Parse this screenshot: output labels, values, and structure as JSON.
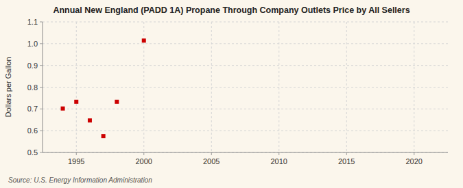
{
  "chart_data": {
    "type": "scatter",
    "title": "Annual New England (PADD 1A) Propane Through Company Outlets Price by All Sellers",
    "ylabel": "Dollars per Gallon",
    "annotations": [
      "Source: U.S. Energy Information Administration"
    ],
    "x": [
      1994,
      1995,
      1996,
      1997,
      1998,
      2000
    ],
    "values": [
      0.702,
      0.733,
      0.647,
      0.575,
      0.733,
      1.014
    ],
    "color": "#cc0000",
    "marker": "square",
    "xlim": [
      1992.5,
      2022.5
    ],
    "ylim": [
      0.5,
      1.1
    ],
    "xticks": [
      1995,
      2000,
      2005,
      2010,
      2015,
      2020
    ],
    "yticks": [
      0.5,
      0.6,
      0.7,
      0.8,
      0.9,
      {
        "value": 1.0,
        "label": "1.0"
      },
      1.1
    ],
    "grid": true
  }
}
